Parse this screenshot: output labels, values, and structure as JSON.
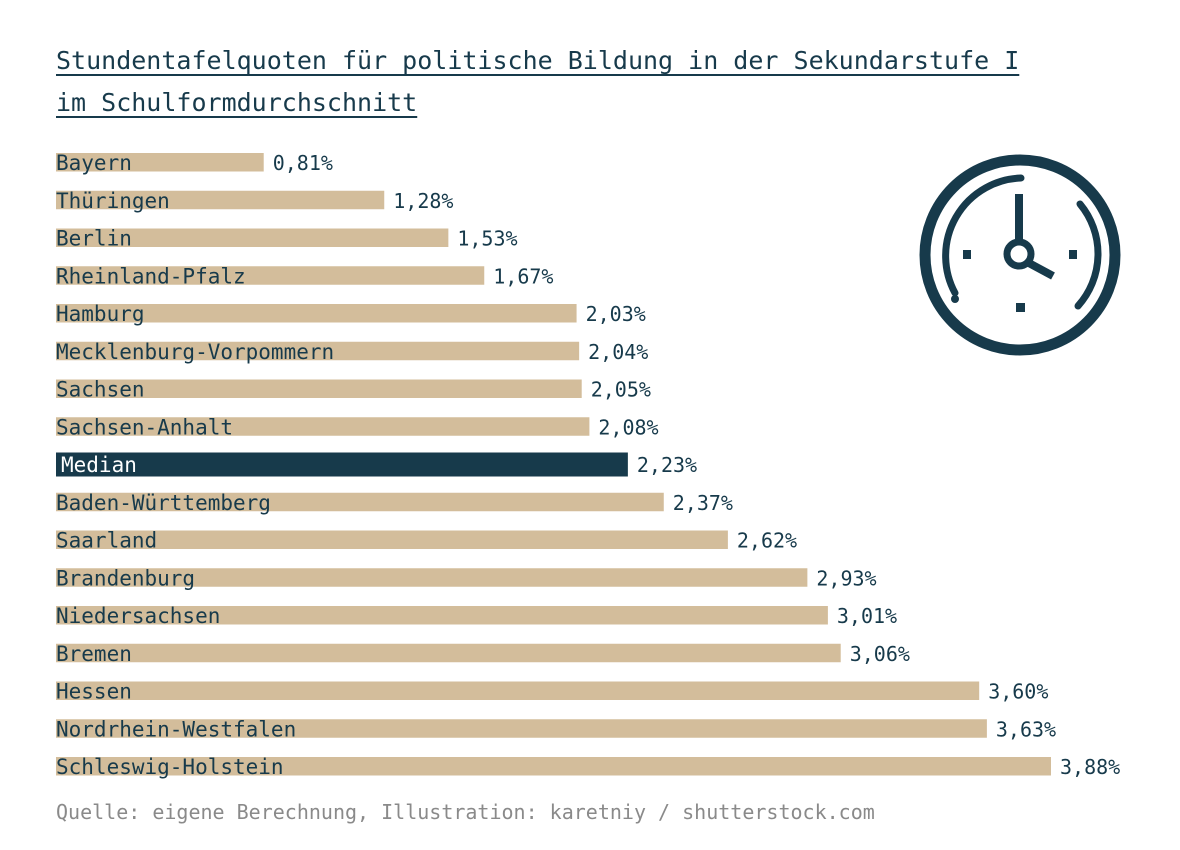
{
  "title_line1": "Stundentafelquoten für politische Bildung in der Sekundarstufe I",
  "title_line2": "im Schulformdurchschnitt",
  "source": "Quelle: eigene Berechnung, Illustration: karetniy / shutterstock.com",
  "colors": {
    "bar": "#d3bd9b",
    "median_bar": "#173a4b",
    "text": "#173a4b",
    "source": "#8a8a8a"
  },
  "icon": "clock-icon",
  "chart_data": {
    "type": "bar",
    "orientation": "horizontal",
    "categories": [
      "Bayern",
      "Thüringen",
      "Berlin",
      "Rheinland-Pfalz",
      "Hamburg",
      "Mecklenburg-Vorpommern",
      "Sachsen",
      "Sachsen-Anhalt",
      "Median",
      "Baden-Württemberg",
      "Saarland",
      "Brandenburg",
      "Niedersachsen",
      "Bremen",
      "Hessen",
      "Nordrhein-Westfalen",
      "Schleswig-Holstein"
    ],
    "values": [
      0.81,
      1.28,
      1.53,
      1.67,
      2.03,
      2.04,
      2.05,
      2.08,
      2.23,
      2.37,
      2.62,
      2.93,
      3.01,
      3.06,
      3.6,
      3.63,
      3.88
    ],
    "value_labels": [
      "0,81%",
      "1,28%",
      "1,53%",
      "1,67%",
      "2,03%",
      "2,04%",
      "2,05%",
      "2,08%",
      "2,23%",
      "2,37%",
      "2,62%",
      "2,93%",
      "3,01%",
      "3,06%",
      "3,60%",
      "3,63%",
      "3,88%"
    ],
    "highlight": "Median",
    "unit": "%",
    "xlim": [
      0,
      3.88
    ],
    "grid": false
  }
}
